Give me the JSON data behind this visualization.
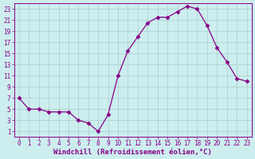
{
  "x": [
    0,
    1,
    2,
    3,
    4,
    5,
    6,
    7,
    8,
    9,
    10,
    11,
    12,
    13,
    14,
    15,
    16,
    17,
    18,
    19,
    20,
    21,
    22,
    23
  ],
  "y": [
    7,
    5,
    5,
    4.5,
    4.5,
    4.5,
    3,
    2.5,
    1,
    4,
    11,
    15.5,
    18,
    20.5,
    21.5,
    21.5,
    22.5,
    23.5,
    23,
    20,
    16,
    13.5,
    10.5,
    10
  ],
  "line_color": "#880088",
  "marker": "D",
  "marker_size": 2.5,
  "bg_color": "#cceeee",
  "grid_color": "#aacccc",
  "ylim": [
    0,
    24
  ],
  "xlim": [
    -0.5,
    23.5
  ],
  "yticks": [
    1,
    3,
    5,
    7,
    9,
    11,
    13,
    15,
    17,
    19,
    21,
    23
  ],
  "xticks": [
    0,
    1,
    2,
    3,
    4,
    5,
    6,
    7,
    8,
    9,
    10,
    11,
    12,
    13,
    14,
    15,
    16,
    17,
    18,
    19,
    20,
    21,
    22,
    23
  ],
  "xlabel": "Windchill (Refroidissement éolien,°C)",
  "tick_color": "#880088",
  "label_fontsize": 6.5,
  "tick_fontsize": 5.5
}
